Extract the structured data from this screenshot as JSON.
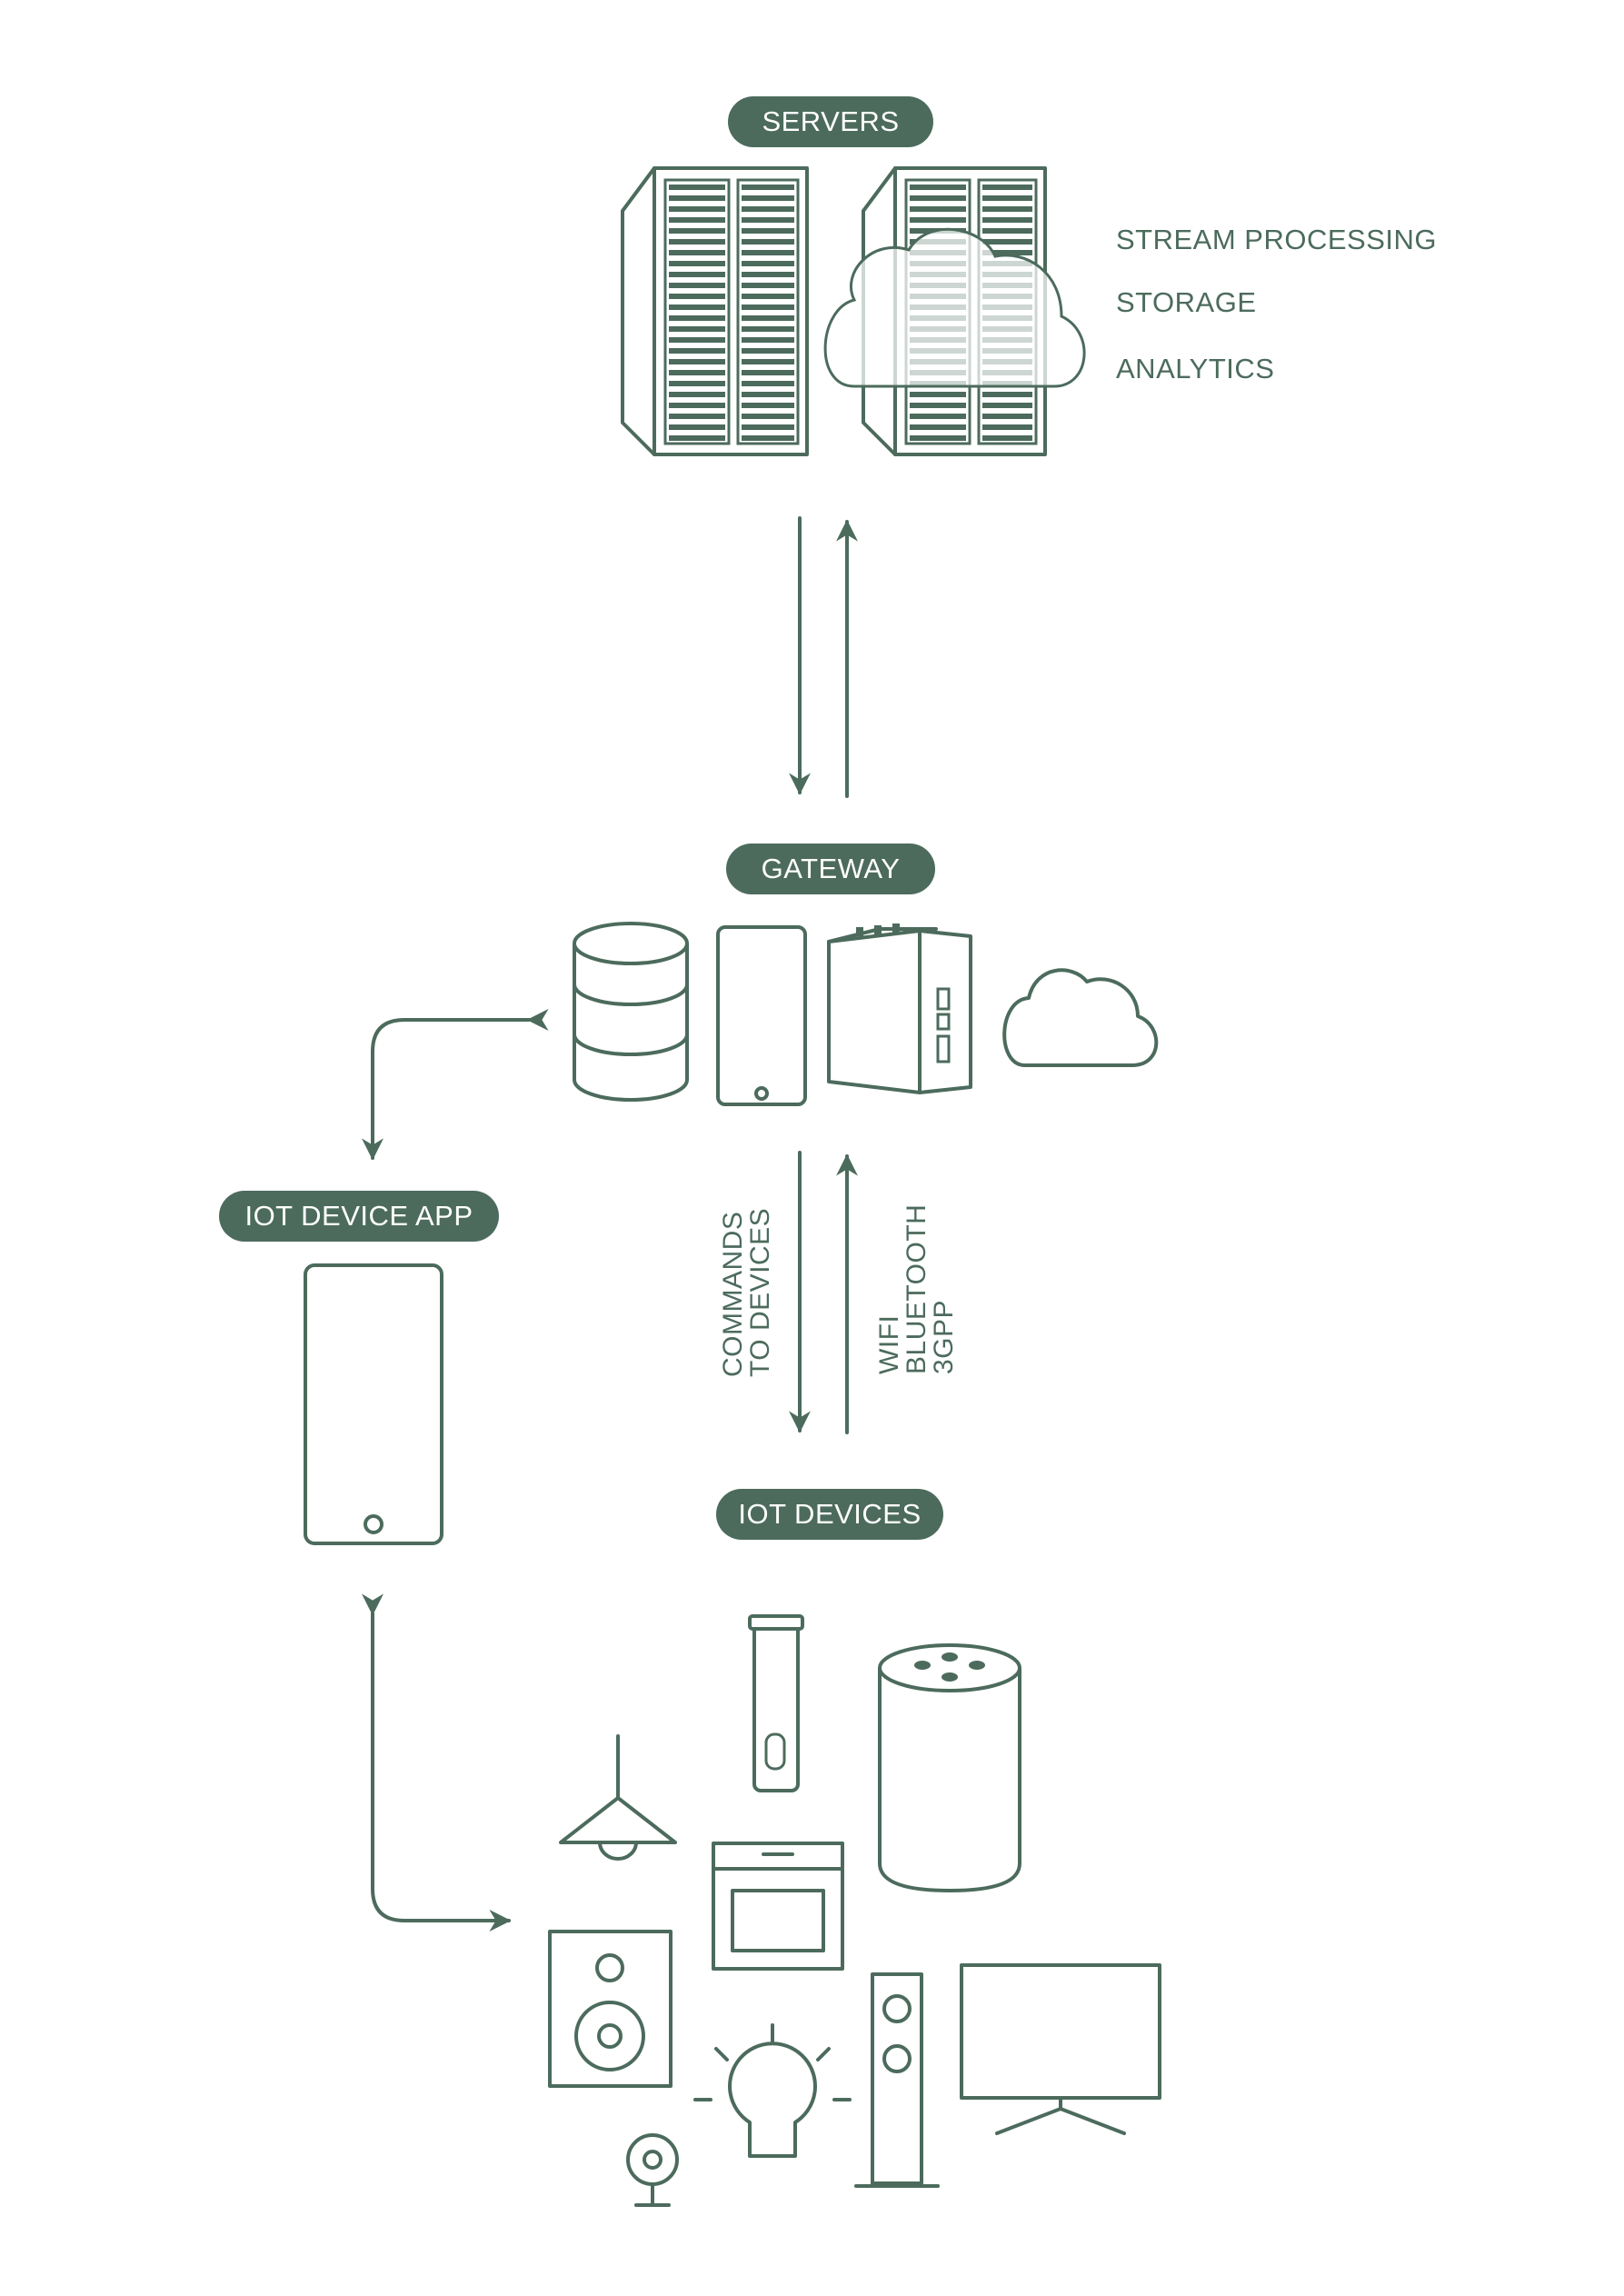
{
  "diagram": {
    "servers": {
      "label": "SERVERS",
      "services": [
        "STREAM PROCESSING",
        "STORAGE",
        "ANALYTICS"
      ]
    },
    "gateway": {
      "label": "GATEWAY"
    },
    "iot_app": {
      "label": "IOT DEVICE APP"
    },
    "iot_devices": {
      "label": "IOT DEVICES"
    },
    "links": {
      "commands": [
        "COMMANDS",
        "TO DEVICES"
      ],
      "protocols": [
        "WIFI",
        "BLUETOOTH",
        "3GPP"
      ]
    }
  },
  "colors": {
    "accent": "#4c6b5d",
    "background": "#ffffff",
    "pill_text": "#ffffff"
  },
  "icons": [
    "server-rack-icon",
    "cloud-icon",
    "database-icon",
    "phone-icon",
    "router-icon",
    "pendant-lamp-icon",
    "smart-plug-icon",
    "smart-speaker-icon",
    "oven-icon",
    "speaker-icon",
    "light-bulb-icon",
    "tower-speaker-icon",
    "tv-icon",
    "webcam-icon"
  ]
}
